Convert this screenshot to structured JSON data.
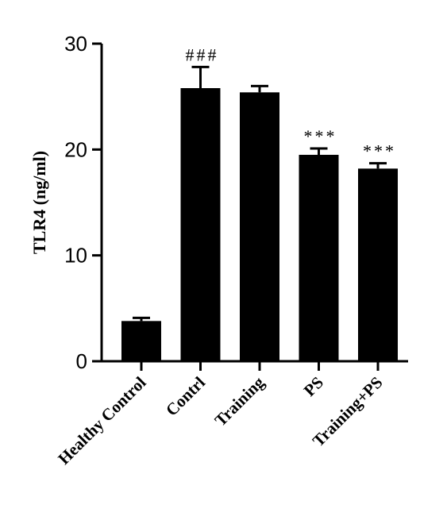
{
  "chart_data": {
    "type": "bar",
    "title": "",
    "xlabel": "",
    "ylabel": "TLR4 (ng/ml)",
    "ylim": [
      0,
      30
    ],
    "yticks": [
      0,
      10,
      20,
      30
    ],
    "categories": [
      "Healthy Control",
      "Contrl",
      "Training",
      "PS",
      "Training+PS"
    ],
    "values": [
      3.8,
      25.8,
      25.4,
      19.5,
      18.2
    ],
    "errors": [
      0.3,
      2.0,
      0.6,
      0.6,
      0.5
    ],
    "annotations": [
      "",
      "###",
      "",
      "***",
      "***"
    ],
    "bar_color": "#000000",
    "grid": false,
    "legend": "none"
  }
}
